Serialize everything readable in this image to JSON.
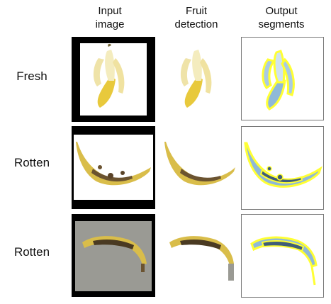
{
  "headers": {
    "input": [
      "Input",
      "image"
    ],
    "detection": [
      "Fruit",
      "detection"
    ],
    "output": [
      "Output",
      "segments"
    ]
  },
  "rows": [
    {
      "label": "Fresh"
    },
    {
      "label": "Rotten"
    },
    {
      "label": "Rotten"
    }
  ],
  "colors": {
    "frame": "#000000",
    "banana_fresh": "#f2e6a0",
    "banana_yellow": "#e7cc3f",
    "banana_brown": "#6b5330",
    "segment_blue": "#8fb9d8",
    "segment_dark": "#3f5d78",
    "segment_outline": "#ffff33",
    "wood": "#9a9a94"
  }
}
